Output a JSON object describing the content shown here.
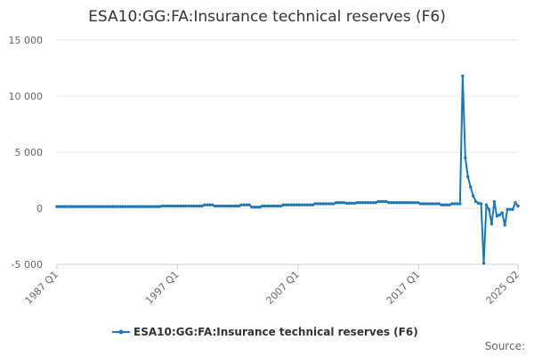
{
  "chart_data": {
    "type": "line",
    "title": "ESA10:GG:FA:Insurance technical reserves (F6)",
    "xlabel": "",
    "ylabel": "",
    "ylim": [
      -5000,
      15000
    ],
    "yticks": [
      15000,
      10000,
      5000,
      0,
      -5000
    ],
    "ytick_labels": [
      "15 000",
      "10 000",
      "5 000",
      "0",
      "-5 000"
    ],
    "xticks": [
      "1987 Q1",
      "1997 Q1",
      "2007 Q1",
      "2017 Q1",
      "2025 Q2"
    ],
    "x_start": "1987 Q1",
    "x_end": "2025 Q2",
    "grid": "horizontal",
    "legend": "bottom",
    "color": "#1f77b4",
    "source_label": "Source:",
    "series": [
      {
        "name": "ESA10:GG:FA:Insurance technical reserves (F6)",
        "values": [
          150,
          150,
          150,
          150,
          150,
          150,
          150,
          150,
          150,
          150,
          150,
          150,
          150,
          150,
          150,
          150,
          150,
          150,
          150,
          150,
          150,
          150,
          150,
          150,
          150,
          150,
          150,
          150,
          150,
          150,
          150,
          150,
          150,
          150,
          150,
          150,
          150,
          150,
          150,
          150,
          200,
          200,
          200,
          200,
          200,
          200,
          200,
          200,
          200,
          200,
          200,
          200,
          200,
          200,
          200,
          200,
          300,
          300,
          300,
          300,
          200,
          200,
          200,
          200,
          200,
          200,
          200,
          200,
          200,
          200,
          300,
          300,
          300,
          300,
          100,
          100,
          100,
          100,
          200,
          200,
          200,
          200,
          200,
          200,
          200,
          200,
          300,
          300,
          300,
          300,
          300,
          300,
          300,
          300,
          300,
          300,
          300,
          300,
          400,
          400,
          400,
          400,
          400,
          400,
          400,
          400,
          500,
          500,
          500,
          500,
          450,
          450,
          450,
          450,
          500,
          500,
          500,
          500,
          500,
          500,
          500,
          500,
          600,
          600,
          600,
          600,
          500,
          500,
          500,
          500,
          500,
          500,
          500,
          500,
          500,
          500,
          500,
          500,
          400,
          400,
          400,
          400,
          400,
          400,
          400,
          400,
          300,
          300,
          300,
          300,
          400,
          400,
          400,
          400,
          11800,
          4500,
          2800,
          1900,
          1100,
          600,
          450,
          400,
          -4900,
          300,
          -100,
          -1400,
          600,
          -700,
          -600,
          -400,
          -1500,
          -100,
          -100,
          -100,
          500,
          200
        ]
      }
    ]
  }
}
